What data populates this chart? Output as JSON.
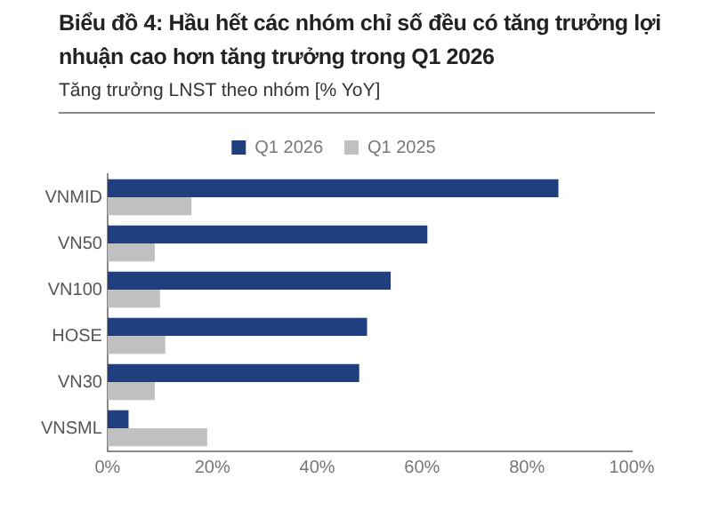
{
  "chart_data": {
    "type": "bar",
    "orientation": "horizontal",
    "title": "Biểu đồ 4: Hầu hết các nhóm chỉ số đều có tăng trưởng lợi nhuận cao hơn tăng trưởng trong Q1 2026",
    "subtitle": "Tăng trưởng LNST theo nhóm [% YoY]",
    "categories": [
      "VNMID",
      "VN50",
      "VN100",
      "HOSE",
      "VN30",
      "VNSML"
    ],
    "series": [
      {
        "name": "Q1 2026",
        "color": "#1f3f7f",
        "values": [
          86,
          61,
          54,
          49.5,
          48,
          4
        ]
      },
      {
        "name": "Q1 2025",
        "color": "#c0c0c0",
        "values": [
          16,
          9,
          10,
          11,
          9,
          19
        ]
      }
    ],
    "xlim": [
      0,
      100
    ],
    "xticks": [
      {
        "value": 0,
        "label": "0%"
      },
      {
        "value": 20,
        "label": "20%"
      },
      {
        "value": 40,
        "label": "40%"
      },
      {
        "value": 60,
        "label": "60%"
      },
      {
        "value": 80,
        "label": "80%"
      },
      {
        "value": 100,
        "label": "100%"
      }
    ],
    "grid": false,
    "legend": "top"
  }
}
